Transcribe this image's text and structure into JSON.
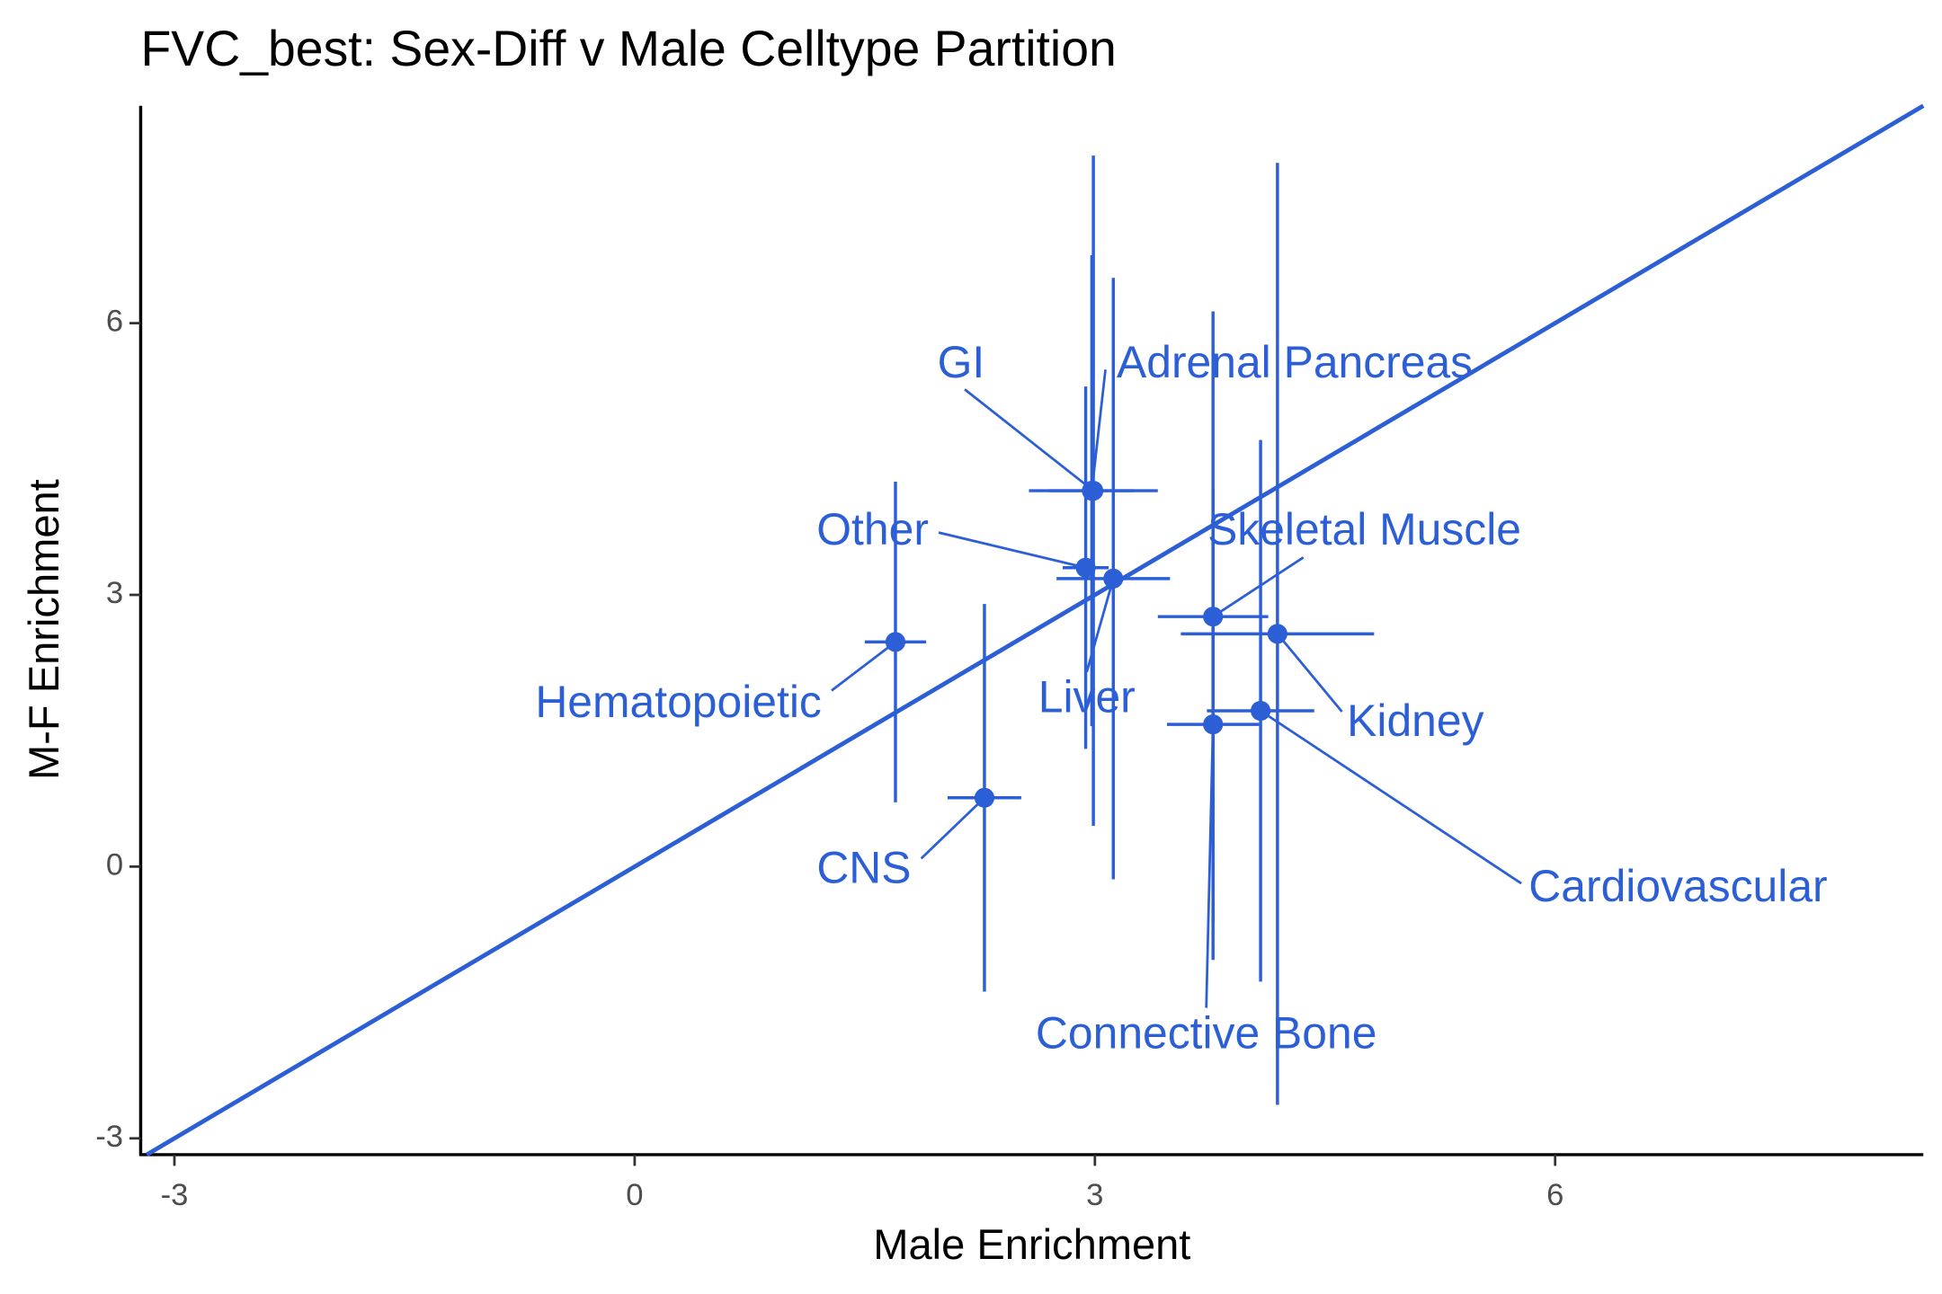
{
  "chart_data": {
    "type": "scatter",
    "title": "FVC_best: Sex-Diff v Male Celltype Partition",
    "x_label": "Male Enrichment",
    "y_label": "M-F Enrichment",
    "color": "#2c5fd6",
    "identity_line": true,
    "xlim": [
      -3.22,
      8.4
    ],
    "ylim": [
      -3.18,
      8.4
    ],
    "xticks": [
      -3,
      0,
      3,
      6
    ],
    "yticks": [
      -3,
      0,
      3,
      6
    ],
    "labels": [
      "Hematopoietic",
      "CNS",
      "GI",
      "Adrenal Pancreas",
      "Other",
      "Liver",
      "Skeletal Muscle",
      "Kidney",
      "Cardiovascular",
      "Connective Bone"
    ],
    "x": [
      1.7,
      2.28,
      2.99,
      2.98,
      2.94,
      3.12,
      3.77,
      4.19,
      4.08,
      3.77
    ],
    "y": [
      2.48,
      0.76,
      4.15,
      4.15,
      3.3,
      3.18,
      2.76,
      2.57,
      1.72,
      1.57
    ],
    "xerr": [
      0.2,
      0.24,
      0.42,
      0.28,
      0.15,
      0.37,
      0.36,
      0.63,
      0.35,
      0.3
    ],
    "yerr": [
      1.77,
      2.14,
      3.7,
      2.6,
      2.0,
      3.32,
      3.37,
      5.2,
      2.99,
      2.6
    ]
  }
}
